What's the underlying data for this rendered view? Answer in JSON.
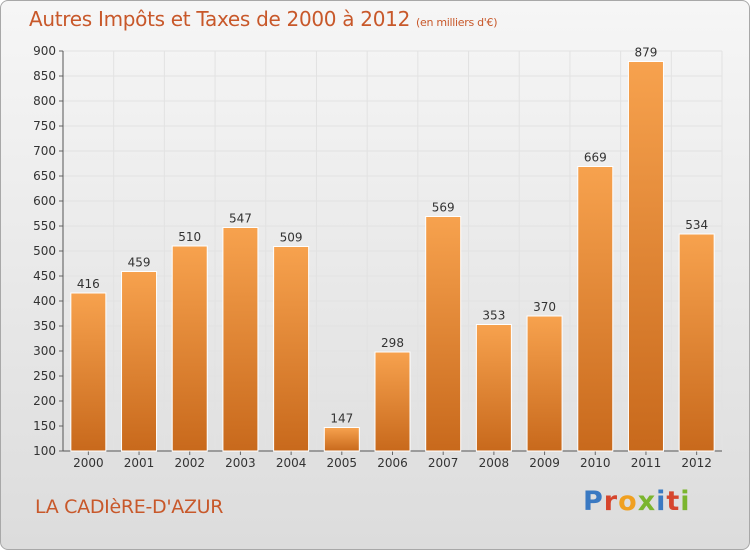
{
  "header": {
    "title": "Autres Impôts et Taxes de 2000 à 2012",
    "unit": "(en milliers d'€)"
  },
  "footer": {
    "city": "LA CADIèRE-D'AZUR",
    "logo_letters": [
      "P",
      "r",
      "o",
      "x",
      "i",
      "t",
      "i"
    ],
    "logo_colors": [
      "#3a79c2",
      "#d6452c",
      "#f0a020",
      "#7bb52e",
      "#3a79c2",
      "#d6452c",
      "#7bb52e"
    ]
  },
  "colors": {
    "bar_light": "#f7a24e",
    "bar_dark": "#c8691c",
    "text_accent": "#c8582a"
  },
  "chart_data": {
    "type": "bar",
    "title": "Autres Impôts et Taxes de 2000 à 2012",
    "subtitle": "(en milliers d'€)",
    "xlabel": "",
    "ylabel": "",
    "categories": [
      "2000",
      "2001",
      "2002",
      "2003",
      "2004",
      "2005",
      "2006",
      "2007",
      "2008",
      "2009",
      "2010",
      "2011",
      "2012"
    ],
    "values": [
      416,
      459,
      510,
      547,
      509,
      147,
      298,
      569,
      353,
      370,
      669,
      879,
      534
    ],
    "ylim": [
      100,
      900
    ],
    "yticks": [
      100,
      150,
      200,
      250,
      300,
      350,
      400,
      450,
      500,
      550,
      600,
      650,
      700,
      750,
      800,
      850,
      900
    ],
    "grid": true,
    "data_labels": true
  }
}
